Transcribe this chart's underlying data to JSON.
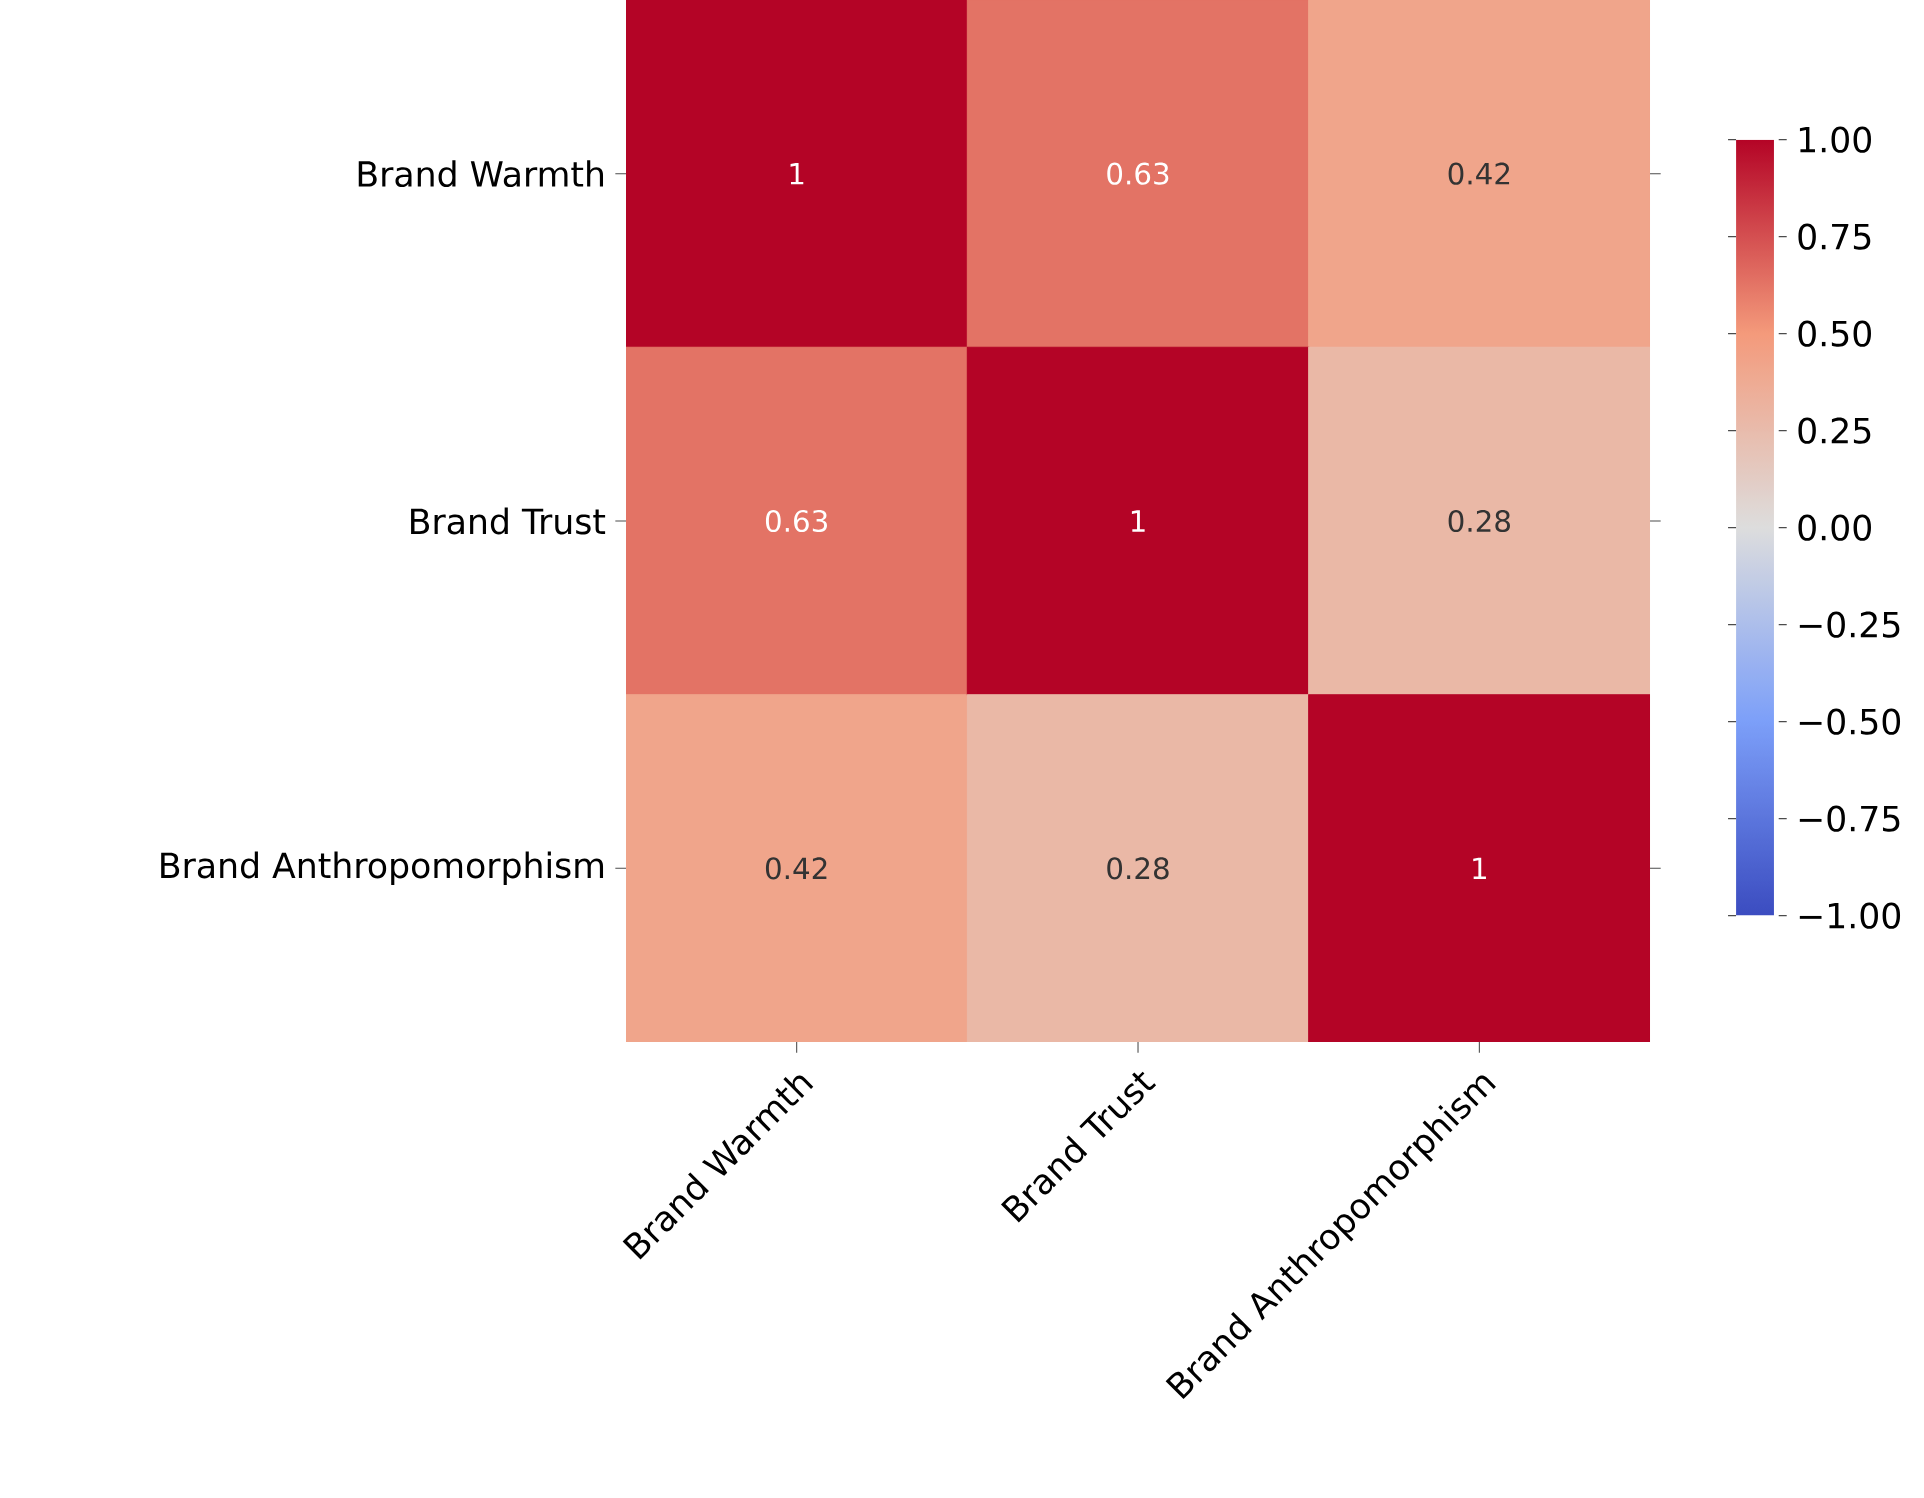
{
  "chart_data": {
    "type": "heatmap",
    "categories": [
      "Brand Warmth",
      "Brand Trust",
      "Brand Anthropomorphism"
    ],
    "y_categories": [
      "Brand Warmth",
      "Brand Trust",
      "Brand Anthropomorphism"
    ],
    "cells": [
      [
        1,
        0.63,
        0.42
      ],
      [
        0.63,
        1,
        0.28
      ],
      [
        0.42,
        0.28,
        1
      ]
    ],
    "clim": [
      -1,
      1
    ],
    "cticks": [
      {
        "value": -1,
        "label": "−1.00"
      },
      {
        "value": -0.75,
        "label": "−0.75"
      },
      {
        "value": -0.5,
        "label": "−0.50"
      },
      {
        "value": -0.25,
        "label": "−0.25"
      },
      {
        "value": 0,
        "label": "0.00"
      },
      {
        "value": 0.25,
        "label": "0.25"
      },
      {
        "value": 0.5,
        "label": "0.50"
      },
      {
        "value": 0.75,
        "label": "0.75"
      },
      {
        "value": 1,
        "label": "1.00"
      }
    ],
    "data_labels": true
  }
}
